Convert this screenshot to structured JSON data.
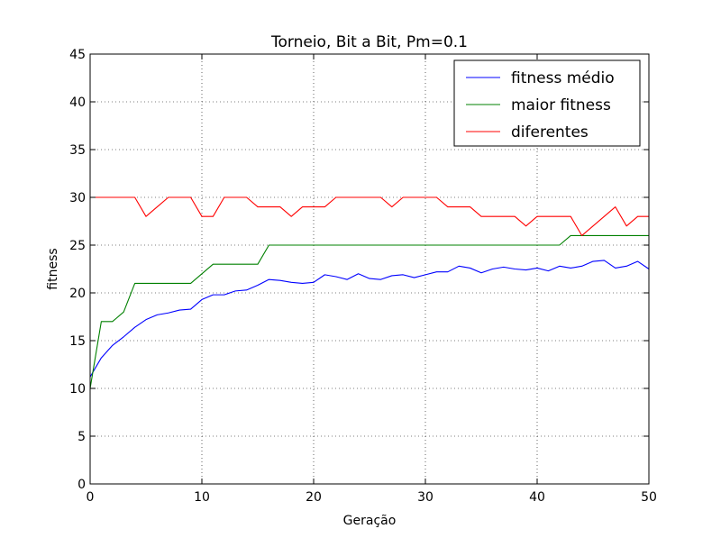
{
  "chart_data": {
    "type": "line",
    "title": "Torneio, Bit a Bit, Pm=0.1",
    "xlabel": "Geração",
    "ylabel": "fitness",
    "xlim": [
      0,
      50
    ],
    "ylim": [
      0,
      45
    ],
    "xticks": [
      "0",
      "10",
      "20",
      "30",
      "40",
      "50"
    ],
    "yticks": [
      "0",
      "5",
      "10",
      "15",
      "20",
      "25",
      "30",
      "35",
      "40",
      "45"
    ],
    "grid": true,
    "legend_position": "top-right",
    "x": [
      0,
      1,
      2,
      3,
      4,
      5,
      6,
      7,
      8,
      9,
      10,
      11,
      12,
      13,
      14,
      15,
      16,
      17,
      18,
      19,
      20,
      21,
      22,
      23,
      24,
      25,
      26,
      27,
      28,
      29,
      30,
      31,
      32,
      33,
      34,
      35,
      36,
      37,
      38,
      39,
      40,
      41,
      42,
      43,
      44,
      45,
      46,
      47,
      48,
      49,
      50
    ],
    "series": [
      {
        "name": "fitness médio",
        "color": "#0000ff",
        "values": [
          11.2,
          13.2,
          14.5,
          15.4,
          16.4,
          17.2,
          17.7,
          17.9,
          18.2,
          18.3,
          19.3,
          19.8,
          19.8,
          20.2,
          20.3,
          20.8,
          21.4,
          21.3,
          21.1,
          21.0,
          21.1,
          21.9,
          21.7,
          21.4,
          22.0,
          21.5,
          21.4,
          21.8,
          21.9,
          21.6,
          21.9,
          22.2,
          22.2,
          22.8,
          22.6,
          22.1,
          22.5,
          22.7,
          22.5,
          22.4,
          22.6,
          22.3,
          22.8,
          22.6,
          22.8,
          23.3,
          23.4,
          22.6,
          22.8,
          23.3,
          22.5
        ]
      },
      {
        "name": "maior fitness",
        "color": "#008000",
        "values": [
          10,
          17,
          17,
          18,
          21,
          21,
          21,
          21,
          21,
          21,
          22,
          23,
          23,
          23,
          23,
          23,
          25,
          25,
          25,
          25,
          25,
          25,
          25,
          25,
          25,
          25,
          25,
          25,
          25,
          25,
          25,
          25,
          25,
          25,
          25,
          25,
          25,
          25,
          25,
          25,
          25,
          25,
          25,
          26,
          26,
          26,
          26,
          26,
          26,
          26,
          26
        ]
      },
      {
        "name": "diferentes",
        "color": "#ff0000",
        "values": [
          30,
          30,
          30,
          30,
          30,
          28,
          29,
          30,
          30,
          30,
          28,
          28,
          30,
          30,
          30,
          29,
          29,
          29,
          28,
          29,
          29,
          29,
          30,
          30,
          30,
          30,
          30,
          29,
          30,
          30,
          30,
          30,
          29,
          29,
          29,
          28,
          28,
          28,
          28,
          27,
          28,
          28,
          28,
          28,
          26,
          27,
          28,
          29,
          27,
          28,
          28
        ]
      }
    ]
  }
}
